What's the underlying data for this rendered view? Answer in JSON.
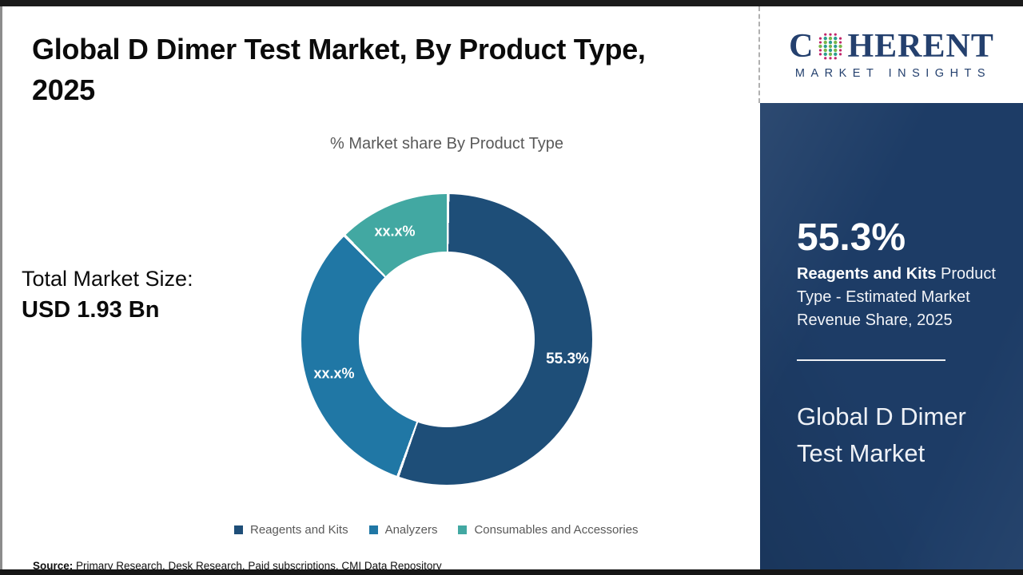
{
  "page": {
    "title_line1": "Global D Dimer Test Market, By Product Type,",
    "title_line2": "2025",
    "total_market": {
      "label": "Total Market Size:",
      "value": "USD 1.93 Bn"
    },
    "source": {
      "label": "Source:",
      "text": " Primary Research, Desk Research, Paid subscriptions, CMI Data Repository"
    }
  },
  "chart_data": {
    "type": "pie",
    "subtype": "donut",
    "title": "% Market share By Product Type",
    "legend_position": "bottom",
    "hole_ratio": 0.6,
    "start_angle_deg": 0,
    "direction": "clockwise",
    "series": [
      {
        "name": "Reagents and Kits",
        "label": "55.3%",
        "pct": 55.3,
        "color": "#1e4e78"
      },
      {
        "name": "Analyzers",
        "label": "xx.x%",
        "pct": 32.2,
        "color": "#2077a5"
      },
      {
        "name": "Consumables and Accessories",
        "label": "xx.x%",
        "pct": 12.5,
        "color": "#42a8a2"
      }
    ]
  },
  "sidebar": {
    "logo": {
      "brand_left": "C",
      "brand_right": "HERENT",
      "tagline": "MARKET INSIGHTS",
      "navy": "#24406e",
      "globe_colors": {
        "rim": "#c2266b",
        "dot_a": "#2a9d8f",
        "dot_b": "#7ab648"
      }
    },
    "panel_bg": "#1d3c66",
    "stat_value": "55.3%",
    "stat_desc_bold": "Reagents and Kits",
    "stat_desc_rest": " Product Type - Estimated Market Revenue Share, 2025",
    "market_name": "Global D Dimer Test Market"
  }
}
